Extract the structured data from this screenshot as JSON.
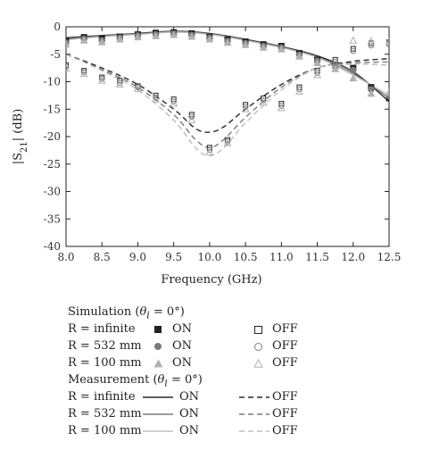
{
  "chart_data": {
    "type": "line",
    "xlabel": "Frequency (GHz)",
    "ylabel": "|S21| (dB)",
    "xlim": [
      8.0,
      12.5
    ],
    "ylim": [
      -40,
      0
    ],
    "xticks": [
      "8.0",
      "8.5",
      "9.0",
      "9.5",
      "10.0",
      "10.5",
      "11.0",
      "11.5",
      "12.0",
      "12.5"
    ],
    "yticks": [
      "0",
      "-5",
      "-10",
      "-15",
      "-20",
      "-25",
      "-30",
      "-35",
      "-40"
    ],
    "grid": false,
    "series": [
      {
        "kind": "line",
        "style": "solid",
        "color": "#2a2a2a",
        "x": [
          8.0,
          8.5,
          9.0,
          9.5,
          10.0,
          10.5,
          11.0,
          11.5,
          12.0,
          12.5
        ],
        "y": [
          -2.0,
          -1.6,
          -1.2,
          -0.8,
          -1.2,
          -2.3,
          -3.6,
          -5.3,
          -8.2,
          -13.6
        ]
      },
      {
        "kind": "line",
        "style": "solid",
        "color": "#7a7a7a",
        "x": [
          8.0,
          8.5,
          9.0,
          9.5,
          10.0,
          10.5,
          11.0,
          11.5,
          12.0,
          12.5
        ],
        "y": [
          -2.2,
          -1.7,
          -1.3,
          -0.9,
          -1.3,
          -2.4,
          -3.7,
          -5.5,
          -8.5,
          -13.0
        ]
      },
      {
        "kind": "line",
        "style": "solid",
        "color": "#bdbdbd",
        "x": [
          8.0,
          8.5,
          9.0,
          9.5,
          10.0,
          10.5,
          11.0,
          11.5,
          12.0,
          12.5
        ],
        "y": [
          -2.4,
          -1.8,
          -1.4,
          -1.0,
          -1.4,
          -2.5,
          -3.8,
          -5.6,
          -8.8,
          -12.5
        ]
      },
      {
        "kind": "line",
        "style": "dashed",
        "color": "#2a2a2a",
        "x": [
          8.0,
          8.5,
          9.0,
          9.5,
          9.8,
          10.0,
          10.2,
          10.5,
          11.0,
          11.5,
          12.0,
          12.5
        ],
        "y": [
          -5.0,
          -7.5,
          -10.5,
          -15.0,
          -18.5,
          -19.2,
          -18.2,
          -15.0,
          -10.5,
          -7.5,
          -6.3,
          -5.8
        ]
      },
      {
        "kind": "line",
        "style": "dashed",
        "color": "#7a7a7a",
        "x": [
          8.0,
          8.5,
          9.0,
          9.5,
          9.8,
          10.0,
          10.2,
          10.5,
          11.0,
          11.5,
          12.0,
          12.5
        ],
        "y": [
          -5.0,
          -7.8,
          -11.0,
          -16.0,
          -20.5,
          -22.0,
          -20.5,
          -16.5,
          -11.0,
          -7.5,
          -6.6,
          -6.4
        ]
      },
      {
        "kind": "line",
        "style": "dashed",
        "color": "#bdbdbd",
        "x": [
          8.0,
          8.5,
          9.0,
          9.5,
          9.8,
          10.0,
          10.2,
          10.5,
          11.0,
          11.5,
          12.0,
          12.5
        ],
        "y": [
          -5.0,
          -8.0,
          -11.5,
          -17.0,
          -22.0,
          -23.5,
          -22.0,
          -17.5,
          -11.5,
          -7.5,
          -6.8,
          -7.0
        ]
      },
      {
        "kind": "marker",
        "marker": "square",
        "filled": true,
        "color": "#222222",
        "x": [
          8.0,
          8.25,
          8.5,
          8.75,
          9.0,
          9.25,
          9.5,
          9.75,
          10.0,
          10.25,
          10.5,
          10.75,
          11.0,
          11.25,
          11.5,
          11.75,
          12.0,
          12.25,
          12.5
        ],
        "y": [
          -2.6,
          -1.9,
          -2.1,
          -1.8,
          -1.4,
          -1.1,
          -1.0,
          -1.2,
          -1.8,
          -2.3,
          -2.7,
          -3.2,
          -3.5,
          -4.8,
          -6.0,
          -7.0,
          -7.5,
          -11.0,
          -13.0
        ]
      },
      {
        "kind": "marker",
        "marker": "circle",
        "filled": true,
        "color": "#7a7a7a",
        "x": [
          8.0,
          8.25,
          8.5,
          8.75,
          9.0,
          9.25,
          9.5,
          9.75,
          10.0,
          10.25,
          10.5,
          10.75,
          11.0,
          11.25,
          11.5,
          11.75,
          12.0,
          12.25,
          12.5
        ],
        "y": [
          -2.9,
          -2.2,
          -2.5,
          -2.0,
          -1.6,
          -1.4,
          -1.2,
          -1.5,
          -2.0,
          -2.6,
          -3.0,
          -3.5,
          -3.8,
          -5.1,
          -6.2,
          -7.3,
          -7.9,
          -11.4,
          -12.6
        ]
      },
      {
        "kind": "marker",
        "marker": "triangle",
        "filled": true,
        "color": "#b0b0b0",
        "x": [
          8.0,
          8.25,
          8.5,
          8.75,
          9.0,
          9.25,
          9.5,
          9.75,
          10.0,
          10.25,
          10.5,
          10.75,
          11.0,
          11.25,
          11.5,
          11.75,
          12.0,
          12.25,
          12.5
        ],
        "y": [
          -3.2,
          -2.5,
          -2.8,
          -2.3,
          -1.9,
          -1.7,
          -1.5,
          -1.8,
          -2.3,
          -2.9,
          -3.3,
          -3.8,
          -4.1,
          -5.4,
          -6.6,
          -7.7,
          -9.4,
          -12.2,
          -12.0
        ]
      },
      {
        "kind": "marker",
        "marker": "square",
        "filled": false,
        "color": "#222222",
        "x": [
          8.0,
          8.25,
          8.5,
          8.75,
          9.0,
          9.25,
          9.5,
          9.75,
          10.0,
          10.25,
          10.5,
          10.75,
          11.0,
          11.25,
          11.5,
          11.75,
          12.0,
          12.25,
          12.5
        ],
        "y": [
          -7.0,
          -8.0,
          -9.2,
          -9.8,
          -10.8,
          -12.5,
          -13.2,
          -16.0,
          -22.0,
          -20.6,
          -14.2,
          -13.0,
          -14.0,
          -11.0,
          -8.0,
          -6.0,
          -4.0,
          -3.0,
          -2.8
        ]
      },
      {
        "kind": "marker",
        "marker": "circle",
        "filled": false,
        "color": "#7a7a7a",
        "x": [
          8.0,
          8.25,
          8.5,
          8.75,
          9.0,
          9.25,
          9.5,
          9.75,
          10.0,
          10.25,
          10.5,
          10.75,
          11.0,
          11.25,
          11.5,
          11.75,
          12.0,
          12.25,
          12.5
        ],
        "y": [
          -7.3,
          -8.3,
          -9.5,
          -10.2,
          -11.0,
          -12.9,
          -13.6,
          -16.4,
          -22.4,
          -20.9,
          -14.6,
          -13.4,
          -14.4,
          -11.4,
          -8.4,
          -6.4,
          -4.4,
          -3.4,
          -3.2
        ]
      },
      {
        "kind": "marker",
        "marker": "triangle",
        "filled": false,
        "color": "#b0b0b0",
        "x": [
          8.0,
          8.25,
          8.5,
          8.75,
          9.0,
          9.25,
          9.5,
          9.75,
          10.0,
          10.25,
          10.5,
          10.75,
          11.0,
          11.25,
          11.5,
          11.75,
          12.0,
          12.25,
          12.5
        ],
        "y": [
          -7.6,
          -8.6,
          -9.8,
          -10.5,
          -11.3,
          -13.2,
          -14.0,
          -17.0,
          -22.8,
          -21.2,
          -15.0,
          -13.8,
          -14.8,
          -11.8,
          -8.8,
          -6.8,
          -2.5,
          -2.6,
          -2.7
        ]
      }
    ]
  },
  "legend": {
    "sim_heading": "Simulation (θi = 0°)",
    "meas_heading": "Measurement (θi = 0°)",
    "rows": [
      {
        "label": "R = infinite",
        "on": "ON",
        "off": "OFF"
      },
      {
        "label": "R = 532 mm",
        "on": "ON",
        "off": "OFF"
      },
      {
        "label": "R = 100 mm",
        "on": "ON",
        "off": "OFF"
      }
    ]
  }
}
